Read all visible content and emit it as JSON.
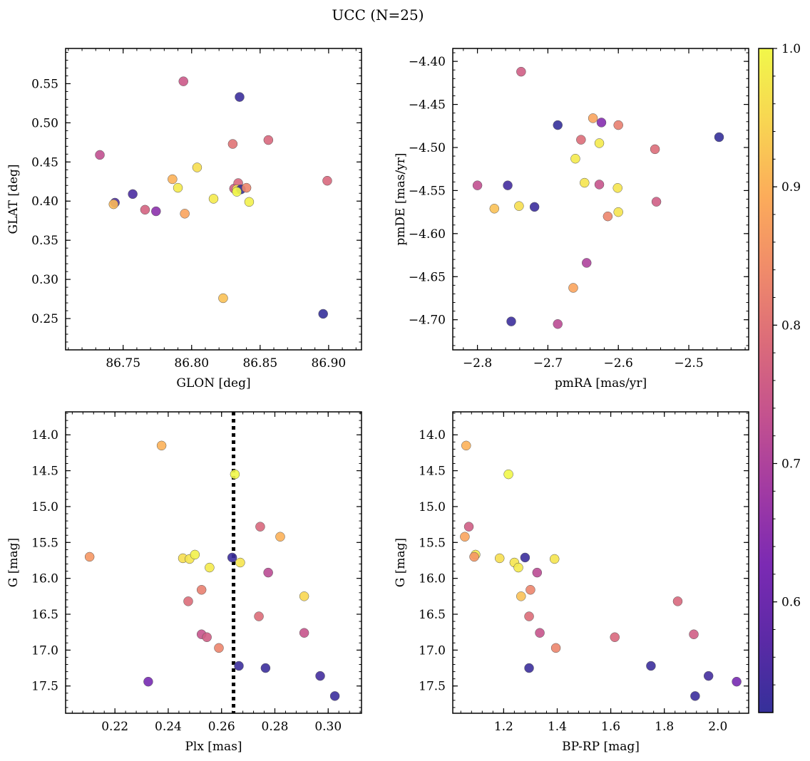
{
  "figure_title": "UCC (N=25)",
  "colormap": [
    "#35309a",
    "#5c2aa6",
    "#7b2ab3",
    "#a13aa3",
    "#c3518f",
    "#db6b7a",
    "#f08b6a",
    "#fcac5a",
    "#f8d552",
    "#f1f74a"
  ],
  "colorbar": {
    "range": [
      0.52,
      1.0
    ],
    "ticks": [
      0.6,
      0.7,
      0.8,
      0.9,
      1.0
    ],
    "tick_labels": [
      "0.6",
      "0.7",
      "0.8",
      "0.9",
      "1.0"
    ]
  },
  "chart_data": [
    {
      "type": "scatter",
      "xlabel": "GLON [deg]",
      "ylabel": "GLAT [deg]",
      "xlim": [
        86.708,
        86.924
      ],
      "ylim": [
        0.21,
        0.595
      ],
      "xticks": [
        86.75,
        86.8,
        86.85,
        86.9
      ],
      "xtick_labels": [
        "86.75",
        "86.80",
        "86.85",
        "86.90"
      ],
      "yticks": [
        0.25,
        0.3,
        0.35,
        0.4,
        0.45,
        0.5,
        0.55
      ],
      "ytick_labels": [
        "0.25",
        "0.30",
        "0.35",
        "0.40",
        "0.45",
        "0.50",
        "0.55"
      ],
      "x": [
        86.794,
        86.835,
        86.733,
        86.856,
        86.83,
        86.744,
        86.757,
        86.766,
        86.774,
        86.786,
        86.79,
        86.795,
        86.804,
        86.816,
        86.831,
        86.834,
        86.833,
        86.836,
        86.84,
        86.842,
        86.743,
        86.823,
        86.896,
        86.899,
        86.833
      ],
      "y": [
        0.553,
        0.533,
        0.459,
        0.478,
        0.473,
        0.398,
        0.409,
        0.389,
        0.387,
        0.428,
        0.417,
        0.384,
        0.443,
        0.403,
        0.416,
        0.423,
        0.415,
        0.415,
        0.417,
        0.399,
        0.396,
        0.276,
        0.256,
        0.426,
        0.412
      ],
      "c": [
        0.75,
        0.53,
        0.73,
        0.78,
        0.8,
        0.55,
        0.55,
        0.77,
        0.65,
        0.9,
        0.98,
        0.88,
        0.96,
        0.98,
        0.76,
        0.78,
        0.96,
        0.52,
        0.83,
        0.99,
        0.91,
        0.92,
        0.52,
        0.78,
        1.0
      ]
    },
    {
      "type": "scatter",
      "xlabel": "pmRA [mas/yr]",
      "ylabel": "pmDE [mas/yr]",
      "xlim": [
        -2.835,
        -2.415
      ],
      "ylim": [
        -4.735,
        -4.385
      ],
      "xticks": [
        -2.8,
        -2.7,
        -2.6,
        -2.5
      ],
      "xtick_labels": [
        "−2.8",
        "−2.7",
        "−2.6",
        "−2.5"
      ],
      "yticks": [
        -4.7,
        -4.65,
        -4.6,
        -4.55,
        -4.5,
        -4.45,
        -4.4
      ],
      "ytick_labels": [
        "−4.70",
        "−4.65",
        "−4.60",
        "−4.55",
        "−4.50",
        "−4.45",
        "−4.40"
      ],
      "x": [
        -2.738,
        -2.636,
        -2.624,
        -2.6,
        -2.686,
        -2.653,
        -2.457,
        -2.627,
        -2.548,
        -2.661,
        -2.8,
        -2.757,
        -2.648,
        -2.627,
        -2.601,
        -2.776,
        -2.741,
        -2.719,
        -2.6,
        -2.615,
        -2.546,
        -2.645,
        -2.664,
        -2.752,
        -2.686
      ],
      "y": [
        -4.412,
        -4.466,
        -4.471,
        -4.474,
        -4.474,
        -4.491,
        -4.488,
        -4.495,
        -4.502,
        -4.513,
        -4.544,
        -4.544,
        -4.541,
        -4.543,
        -4.547,
        -4.571,
        -4.568,
        -4.569,
        -4.575,
        -4.58,
        -4.563,
        -4.634,
        -4.663,
        -4.702,
        -4.705
      ],
      "c": [
        0.76,
        0.88,
        0.64,
        0.82,
        0.52,
        0.79,
        0.52,
        0.98,
        0.79,
        0.98,
        0.73,
        0.54,
        0.97,
        0.74,
        0.97,
        0.92,
        0.96,
        0.53,
        0.97,
        0.83,
        0.76,
        0.7,
        0.88,
        0.53,
        0.72
      ]
    },
    {
      "type": "scatter",
      "xlabel": "Plx [mas]",
      "ylabel": "G [mag]",
      "xlim": [
        0.2015,
        0.3125
      ],
      "ylim": [
        17.88,
        13.68
      ],
      "xticks": [
        0.22,
        0.24,
        0.26,
        0.28,
        0.3
      ],
      "xtick_labels": [
        "0.22",
        "0.24",
        "0.26",
        "0.28",
        "0.30"
      ],
      "yticks": [
        14.0,
        14.5,
        15.0,
        15.5,
        16.0,
        16.5,
        17.0,
        17.5
      ],
      "ytick_labels": [
        "14.0",
        "14.5",
        "15.0",
        "15.5",
        "16.0",
        "16.5",
        "17.0",
        "17.5"
      ],
      "x": [
        0.2375,
        0.265,
        0.2745,
        0.282,
        0.2105,
        0.2455,
        0.248,
        0.25,
        0.264,
        0.267,
        0.2555,
        0.2775,
        0.2525,
        0.291,
        0.2475,
        0.274,
        0.291,
        0.2525,
        0.2545,
        0.259,
        0.2665,
        0.2765,
        0.297,
        0.2325,
        0.3025
      ],
      "y": [
        14.15,
        14.55,
        15.28,
        15.42,
        15.7,
        15.72,
        15.73,
        15.67,
        15.71,
        15.78,
        15.85,
        15.92,
        16.16,
        16.25,
        16.32,
        16.53,
        16.76,
        16.78,
        16.82,
        16.97,
        17.22,
        17.25,
        17.36,
        17.44,
        17.64
      ],
      "c": [
        0.9,
        1.0,
        0.78,
        0.9,
        0.86,
        0.96,
        0.97,
        0.99,
        0.53,
        0.97,
        0.98,
        0.72,
        0.82,
        0.95,
        0.79,
        0.79,
        0.74,
        0.74,
        0.76,
        0.83,
        0.53,
        0.53,
        0.54,
        0.62,
        0.53
      ],
      "vline": 0.2645
    },
    {
      "type": "scatter",
      "xlabel": "BP-RP [mag]",
      "ylabel": "G [mag]",
      "xlim": [
        1.01,
        2.115
      ],
      "ylim": [
        17.88,
        13.68
      ],
      "xticks": [
        1.2,
        1.4,
        1.6,
        1.8,
        2.0
      ],
      "xtick_labels": [
        "1.2",
        "1.4",
        "1.6",
        "1.8",
        "2.0"
      ],
      "yticks": [
        14.0,
        14.5,
        15.0,
        15.5,
        16.0,
        16.5,
        17.0,
        17.5
      ],
      "ytick_labels": [
        "14.0",
        "14.5",
        "15.0",
        "15.5",
        "16.0",
        "16.5",
        "17.0",
        "17.5"
      ],
      "x": [
        1.06,
        1.218,
        1.07,
        1.055,
        1.095,
        1.09,
        1.185,
        1.28,
        1.24,
        1.255,
        1.39,
        1.325,
        1.3,
        1.265,
        1.295,
        1.85,
        1.335,
        1.91,
        1.615,
        1.395,
        1.295,
        1.75,
        1.965,
        2.07,
        1.915
      ],
      "y": [
        14.15,
        14.55,
        15.28,
        15.42,
        15.67,
        15.7,
        15.72,
        15.71,
        15.78,
        15.85,
        15.73,
        15.92,
        16.16,
        16.25,
        16.53,
        16.32,
        16.76,
        16.78,
        16.82,
        16.97,
        17.25,
        17.22,
        17.36,
        17.44,
        17.64
      ],
      "c": [
        0.9,
        1.0,
        0.76,
        0.88,
        0.98,
        0.86,
        0.96,
        0.53,
        0.97,
        0.98,
        0.97,
        0.72,
        0.83,
        0.92,
        0.79,
        0.78,
        0.74,
        0.76,
        0.78,
        0.83,
        0.53,
        0.53,
        0.54,
        0.62,
        0.53
      ]
    }
  ]
}
